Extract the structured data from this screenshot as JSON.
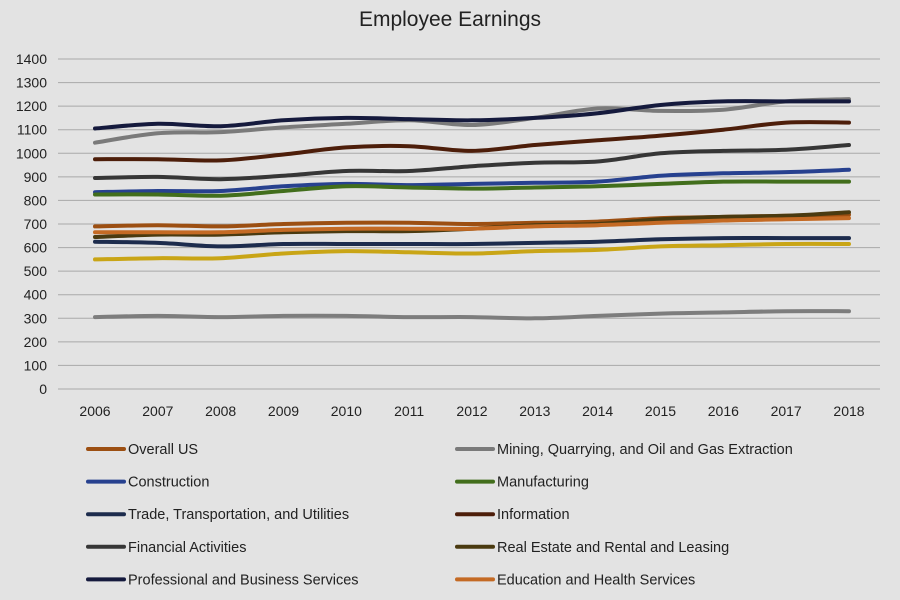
{
  "chart_data": {
    "type": "line",
    "title": "Employee Earnings",
    "xlabel": "",
    "ylabel": "",
    "categories": [
      "2006",
      "2007",
      "2008",
      "2009",
      "2010",
      "2011",
      "2012",
      "2013",
      "2014",
      "2015",
      "2016",
      "2017",
      "2018"
    ],
    "ylim": [
      0,
      1400
    ],
    "yticks": [
      "0",
      "100",
      "200",
      "300",
      "400",
      "500",
      "600",
      "700",
      "800",
      "900",
      "1000",
      "1100",
      "1200",
      "1300",
      "1400"
    ],
    "grid": true,
    "legend_position": "bottom",
    "series": [
      {
        "name": "Overall US",
        "color": "#9c4f12",
        "values": [
          690,
          695,
          690,
          700,
          705,
          705,
          700,
          705,
          710,
          725,
          730,
          735,
          740
        ]
      },
      {
        "name": "Mining, Quarrying, and Oil and Gas Extraction",
        "color": "#7a7a7a",
        "values": [
          1045,
          1085,
          1090,
          1110,
          1125,
          1140,
          1120,
          1150,
          1190,
          1180,
          1185,
          1220,
          1230
        ]
      },
      {
        "name": "Construction",
        "color": "#27418f",
        "values": [
          835,
          840,
          840,
          860,
          870,
          865,
          870,
          875,
          880,
          905,
          915,
          920,
          930
        ]
      },
      {
        "name": "Manufacturing",
        "color": "#426e1c",
        "values": [
          825,
          825,
          820,
          840,
          860,
          855,
          850,
          855,
          860,
          870,
          880,
          880,
          880
        ]
      },
      {
        "name": "Trade, Transportation, and Utilities",
        "color": "#1d2c4d",
        "values": [
          625,
          620,
          605,
          615,
          615,
          615,
          615,
          620,
          625,
          635,
          640,
          640,
          640
        ]
      },
      {
        "name": "Information",
        "color": "#4d1e0a",
        "values": [
          975,
          975,
          970,
          995,
          1025,
          1030,
          1010,
          1035,
          1055,
          1075,
          1100,
          1130,
          1130
        ]
      },
      {
        "name": "Financial Activities",
        "color": "#363636",
        "values": [
          895,
          900,
          890,
          905,
          925,
          925,
          945,
          960,
          965,
          1000,
          1010,
          1015,
          1035
        ]
      },
      {
        "name": "Real Estate and Rental and Leasing",
        "color": "#4a3a10",
        "values": [
          645,
          655,
          655,
          665,
          670,
          670,
          680,
          695,
          700,
          720,
          730,
          735,
          750
        ]
      },
      {
        "name": "Professional and Business Services",
        "color": "#151a3d",
        "values": [
          1105,
          1125,
          1115,
          1140,
          1150,
          1145,
          1140,
          1150,
          1170,
          1205,
          1220,
          1220,
          1220
        ]
      },
      {
        "name": "Education and Health Services",
        "color": "#c46a24",
        "values": [
          665,
          665,
          665,
          675,
          680,
          680,
          680,
          690,
          695,
          705,
          715,
          720,
          725
        ]
      },
      {
        "name": "",
        "color": "#c9a516",
        "values": [
          550,
          555,
          555,
          575,
          585,
          580,
          575,
          585,
          590,
          605,
          610,
          615,
          615
        ]
      },
      {
        "name": "",
        "color": "#7d7d7d",
        "values": [
          305,
          310,
          305,
          310,
          310,
          305,
          305,
          300,
          310,
          320,
          325,
          330,
          330
        ]
      }
    ]
  }
}
